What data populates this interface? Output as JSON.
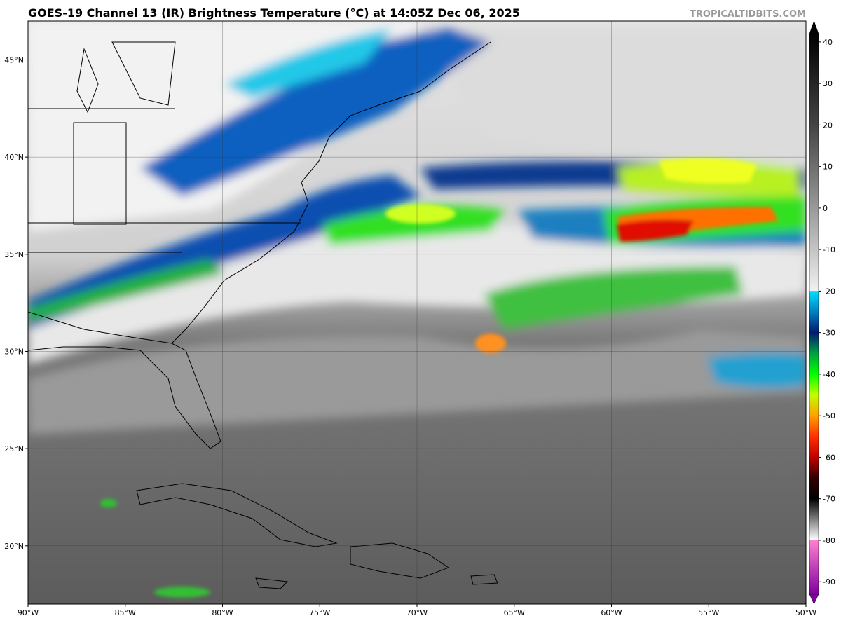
{
  "header": {
    "title": "GOES-19 Channel 13 (IR) Brightness Temperature (°C) at 14:05Z Dec 06, 2025",
    "credit": "TROPICALTIDBITS.COM"
  },
  "map": {
    "xlim": [
      -90,
      -50
    ],
    "ylim": [
      17,
      47
    ],
    "grid": true,
    "xticks": [
      {
        "value": -90,
        "label": "90°W"
      },
      {
        "value": -85,
        "label": "85°W"
      },
      {
        "value": -80,
        "label": "80°W"
      },
      {
        "value": -75,
        "label": "75°W"
      },
      {
        "value": -70,
        "label": "70°W"
      },
      {
        "value": -65,
        "label": "65°W"
      },
      {
        "value": -60,
        "label": "60°W"
      },
      {
        "value": -55,
        "label": "55°W"
      },
      {
        "value": -50,
        "label": "50°W"
      }
    ],
    "yticks": [
      {
        "value": 20,
        "label": "20°N"
      },
      {
        "value": 25,
        "label": "25°N"
      },
      {
        "value": 30,
        "label": "30°N"
      },
      {
        "value": 35,
        "label": "35°N"
      },
      {
        "value": 40,
        "label": "40°N"
      },
      {
        "value": 45,
        "label": "45°N"
      }
    ]
  },
  "colorbar": {
    "range": [
      -93,
      42
    ],
    "ticks": [
      40,
      30,
      20,
      10,
      0,
      -10,
      -20,
      -30,
      -40,
      -50,
      -60,
      -70,
      -80,
      -90
    ],
    "colors": [
      {
        "value": 42,
        "color": "#000000"
      },
      {
        "value": 20,
        "color": "#444444"
      },
      {
        "value": 0,
        "color": "#999999"
      },
      {
        "value": -19.9,
        "color": "#f0f0f0"
      },
      {
        "value": -20,
        "color": "#00e0ff"
      },
      {
        "value": -25,
        "color": "#0080c0"
      },
      {
        "value": -30,
        "color": "#001870"
      },
      {
        "value": -35,
        "color": "#00a040"
      },
      {
        "value": -40,
        "color": "#00ff00"
      },
      {
        "value": -45,
        "color": "#c0ff00"
      },
      {
        "value": -50,
        "color": "#ffa000"
      },
      {
        "value": -55,
        "color": "#ff3000"
      },
      {
        "value": -60,
        "color": "#c00000"
      },
      {
        "value": -65,
        "color": "#300000"
      },
      {
        "value": -70,
        "color": "#000000"
      },
      {
        "value": -75,
        "color": "#808080"
      },
      {
        "value": -79.9,
        "color": "#ffffff"
      },
      {
        "value": -80,
        "color": "#ff80d0"
      },
      {
        "value": -93,
        "color": "#8000a0"
      }
    ]
  }
}
